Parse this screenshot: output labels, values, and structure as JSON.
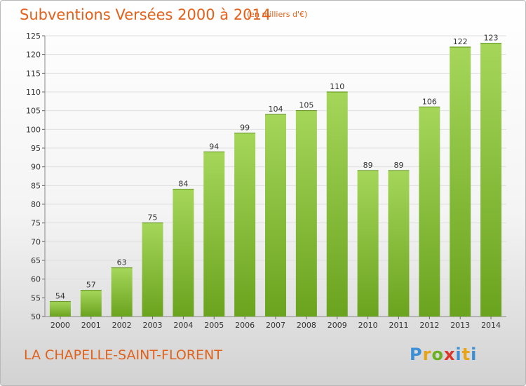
{
  "header": {
    "title": "Subventions Versées 2000 à 2014",
    "unit": "(en milliers d'€)"
  },
  "footer": {
    "commune": "LA CHAPELLE-SAINT-FLORENT",
    "logo_text": "Proxiti"
  },
  "colors": {
    "bar_light": "#a5d65a",
    "bar_dark": "#6aa31e",
    "text_accent": "#e2611a",
    "grid": "#e0e0e0"
  },
  "chart_data": {
    "type": "bar",
    "title": "Subventions Versées 2000 à 2014",
    "subtitle": "(en milliers d'€)",
    "categories": [
      "2000",
      "2001",
      "2002",
      "2003",
      "2004",
      "2005",
      "2006",
      "2007",
      "2008",
      "2009",
      "2010",
      "2011",
      "2012",
      "2013",
      "2014"
    ],
    "values": [
      54,
      57,
      63,
      75,
      84,
      94,
      99,
      104,
      105,
      110,
      89,
      89,
      106,
      122,
      123
    ],
    "ylim": [
      50,
      125
    ],
    "yticks": [
      50,
      55,
      60,
      65,
      70,
      75,
      80,
      85,
      90,
      95,
      100,
      105,
      110,
      115,
      120,
      125
    ],
    "grid": true,
    "data_labels": true
  }
}
